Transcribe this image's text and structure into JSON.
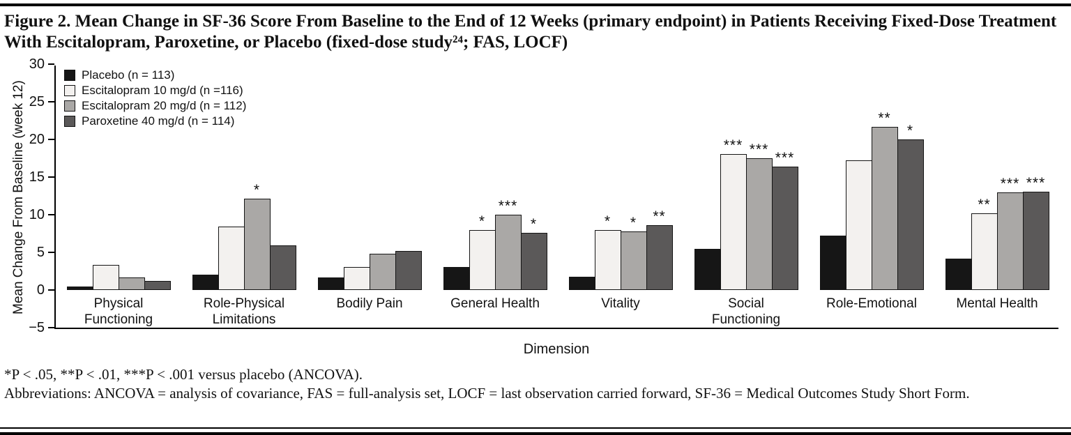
{
  "figure": {
    "title": "Figure 2. Mean Change in SF-36 Score From Baseline to the End of 12 Weeks (primary endpoint) in Patients Receiving Fixed-Dose Treatment With Escitalopram, Paroxetine, or Placebo (fixed-dose study²⁴; FAS, LOCF)"
  },
  "chart_data": {
    "type": "bar",
    "title": "",
    "xlabel": "Dimension",
    "ylabel": "Mean Change From Baseline (week 12)",
    "ylim": [
      -5,
      30
    ],
    "yticks": [
      30,
      25,
      20,
      15,
      10,
      5,
      0,
      -5
    ],
    "grid": false,
    "legend_position": "top-left",
    "categories": [
      "Physical Functioning",
      "Role-Physical Limitations",
      "Bodily Pain",
      "General Health",
      "Vitality",
      "Social Functioning",
      "Role-Emotional",
      "Mental Health"
    ],
    "series": [
      {
        "name": "Placebo (n = 113)",
        "color": "#161616",
        "values": [
          0.5,
          2.0,
          1.7,
          3.1,
          1.8,
          5.5,
          7.2,
          4.2
        ],
        "sig": [
          "",
          "",
          "",
          "",
          "",
          "",
          "",
          ""
        ]
      },
      {
        "name": "Escitalopram 10 mg/d (n =116)",
        "color": "#f3f1ef",
        "values": [
          3.3,
          8.4,
          3.1,
          8.0,
          8.0,
          18.1,
          17.2,
          10.2
        ],
        "sig": [
          "",
          "",
          "",
          "*",
          "*",
          "***",
          "",
          "**"
        ]
      },
      {
        "name": "Escitalopram 20 mg/d (n = 112)",
        "color": "#aaa8a6",
        "values": [
          1.7,
          12.1,
          4.8,
          10.0,
          7.8,
          17.5,
          21.7,
          13.0
        ],
        "sig": [
          "",
          "*",
          "",
          "***",
          "*",
          "***",
          "**",
          "***"
        ]
      },
      {
        "name": "Paroxetine 40 mg/d (n = 114)",
        "color": "#5b5959",
        "values": [
          1.2,
          5.9,
          5.2,
          7.6,
          8.6,
          16.4,
          20.0,
          13.1
        ],
        "sig": [
          "",
          "",
          "",
          "*",
          "**",
          "***",
          "*",
          "***"
        ]
      }
    ]
  },
  "footnotes": {
    "significance": "*P < .05, **P < .01, ***P < .001 versus placebo (ANCOVA).",
    "abbreviations": "Abbreviations: ANCOVA = analysis of covariance, FAS = full-analysis set, LOCF = last observation carried forward, SF-36 = Medical Outcomes Study Short Form."
  }
}
